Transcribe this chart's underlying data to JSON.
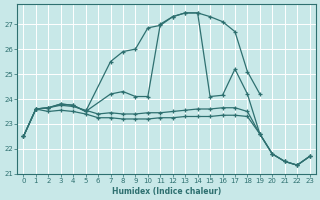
{
  "xlabel": "Humidex (Indice chaleur)",
  "xlim": [
    -0.5,
    23.5
  ],
  "ylim": [
    21.0,
    27.8
  ],
  "yticks": [
    21,
    22,
    23,
    24,
    25,
    26,
    27
  ],
  "xticks": [
    0,
    1,
    2,
    3,
    4,
    5,
    6,
    7,
    8,
    9,
    10,
    11,
    12,
    13,
    14,
    15,
    16,
    17,
    18,
    19,
    20,
    21,
    22,
    23
  ],
  "bg_color": "#c8e8e8",
  "grid_color": "#ffffff",
  "line_color": "#2e7070",
  "lines": [
    {
      "x": [
        0,
        1,
        2,
        3,
        4,
        5,
        7,
        8,
        9,
        10,
        11,
        12,
        13,
        14,
        15,
        16,
        17,
        18,
        19
      ],
      "y": [
        22.5,
        23.6,
        23.65,
        23.8,
        23.75,
        23.5,
        25.5,
        25.9,
        26.0,
        26.85,
        26.95,
        27.3,
        27.45,
        27.45,
        27.3,
        27.1,
        26.7,
        25.1,
        24.2
      ]
    },
    {
      "x": [
        0,
        1,
        2,
        3,
        4,
        5,
        7,
        8,
        9,
        10,
        11,
        12,
        13,
        14,
        15,
        16,
        17,
        18,
        19,
        20,
        21,
        22,
        23
      ],
      "y": [
        22.5,
        23.6,
        23.65,
        23.8,
        23.75,
        23.5,
        24.2,
        24.3,
        24.1,
        24.1,
        27.0,
        27.3,
        27.45,
        27.45,
        24.1,
        24.15,
        25.2,
        24.2,
        22.6,
        21.8,
        21.5,
        21.35,
        21.7
      ]
    },
    {
      "x": [
        0,
        1,
        2,
        3,
        4,
        5,
        6,
        7,
        8,
        9,
        10,
        11,
        12,
        13,
        14,
        15,
        16,
        17,
        18,
        19,
        20,
        21,
        22,
        23
      ],
      "y": [
        22.5,
        23.6,
        23.65,
        23.75,
        23.7,
        23.55,
        23.4,
        23.45,
        23.4,
        23.4,
        23.45,
        23.45,
        23.5,
        23.55,
        23.6,
        23.6,
        23.65,
        23.65,
        23.5,
        22.6,
        21.8,
        21.5,
        21.35,
        21.7
      ]
    },
    {
      "x": [
        0,
        1,
        2,
        3,
        4,
        5,
        6,
        7,
        8,
        9,
        10,
        11,
        12,
        13,
        14,
        15,
        16,
        17,
        18,
        19,
        20,
        21,
        22,
        23
      ],
      "y": [
        22.5,
        23.6,
        23.5,
        23.55,
        23.5,
        23.4,
        23.25,
        23.25,
        23.2,
        23.2,
        23.2,
        23.25,
        23.25,
        23.3,
        23.3,
        23.3,
        23.35,
        23.35,
        23.3,
        22.6,
        21.8,
        21.5,
        21.35,
        21.7
      ]
    }
  ]
}
